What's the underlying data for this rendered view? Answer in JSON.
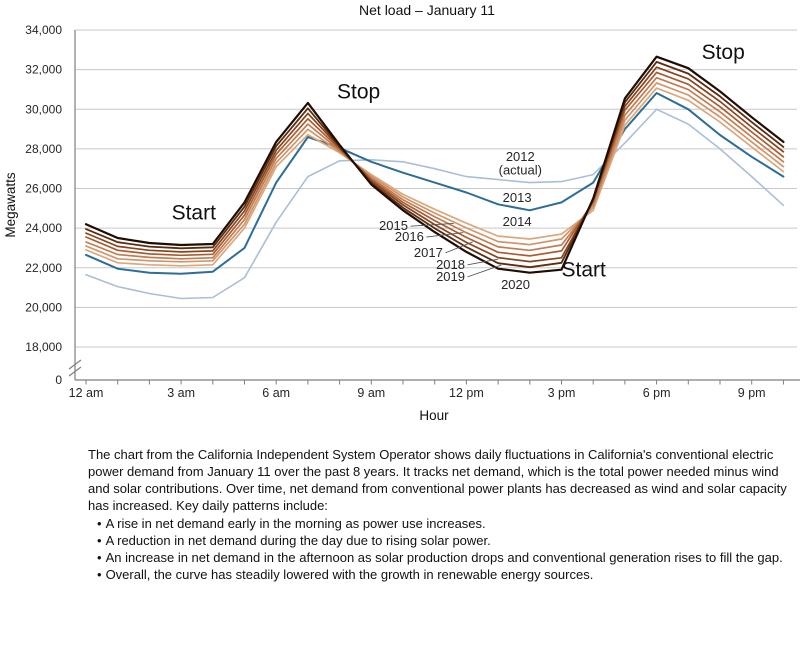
{
  "chart_data": {
    "type": "line",
    "title": "Net load – January 11",
    "x_start_hour": 0,
    "x_step_hours": 1,
    "x_axis": {
      "label": "Hour",
      "labeled_ticks": [
        {
          "hour": 0,
          "label": "12 am"
        },
        {
          "hour": 3,
          "label": "3 am"
        },
        {
          "hour": 6,
          "label": "6 am"
        },
        {
          "hour": 9,
          "label": "9 am"
        },
        {
          "hour": 12,
          "label": "12 pm"
        },
        {
          "hour": 15,
          "label": "3 pm"
        },
        {
          "hour": 18,
          "label": "6 pm"
        },
        {
          "hour": 21,
          "label": "9 pm"
        }
      ]
    },
    "y_axis": {
      "label": "Megawatts",
      "units": "MW",
      "axis_break": true,
      "zero_label": "0",
      "ticks": [
        {
          "value": 34000,
          "label": "34,000"
        },
        {
          "value": 32000,
          "label": "32,000"
        },
        {
          "value": 30000,
          "label": "30,000"
        },
        {
          "value": 28000,
          "label": "28,000"
        },
        {
          "value": 26000,
          "label": "26,000"
        },
        {
          "value": 24000,
          "label": "24,000"
        },
        {
          "value": 22000,
          "label": "22,000"
        },
        {
          "value": 20000,
          "label": "20,000"
        },
        {
          "value": 18000,
          "label": "18,000"
        }
      ]
    },
    "series": [
      {
        "year": "2012",
        "display": "2012 (actual)",
        "color": "#aabfd6",
        "width": 1.6,
        "values": [
          21650,
          21050,
          20700,
          20450,
          20500,
          21500,
          24300,
          26600,
          27400,
          27450,
          27350,
          27000,
          26600,
          26450,
          26300,
          26350,
          26700,
          28300,
          30000,
          29250,
          28000,
          26600,
          25150
        ]
      },
      {
        "year": "2013",
        "display": "2013",
        "color": "#2d6d99",
        "width": 2,
        "values": [
          22650,
          21950,
          21750,
          21700,
          21800,
          23000,
          26300,
          28600,
          28050,
          27350,
          26800,
          26300,
          25800,
          25200,
          24900,
          25300,
          26300,
          29000,
          30820,
          30000,
          28700,
          27600,
          26600
        ]
      },
      {
        "year": "2014",
        "display": "2014",
        "color": "#dba87e",
        "width": 1.7,
        "values": [
          22900,
          22250,
          22150,
          22100,
          22150,
          24000,
          27100,
          28720,
          27800,
          26700,
          25700,
          24950,
          24250,
          23600,
          23450,
          23700,
          24900,
          29200,
          31070,
          30450,
          29350,
          28100,
          26850
        ]
      },
      {
        "year": "2015",
        "display": "2015",
        "color": "#d0956a",
        "width": 1.7,
        "values": [
          23100,
          22450,
          22350,
          22300,
          22350,
          24200,
          27300,
          28990,
          27850,
          26620,
          25570,
          24760,
          24010,
          23320,
          23170,
          23450,
          25050,
          29450,
          31330,
          30720,
          29610,
          28350,
          27100
        ]
      },
      {
        "year": "2016",
        "display": "2016",
        "color": "#c27c51",
        "width": 1.7,
        "values": [
          23300,
          22670,
          22520,
          22450,
          22500,
          24430,
          27520,
          29250,
          27930,
          26530,
          25430,
          24570,
          23770,
          23050,
          22880,
          23150,
          25200,
          29700,
          31590,
          30990,
          29870,
          28600,
          27350
        ]
      },
      {
        "year": "2017",
        "display": "2017",
        "color": "#a95d33",
        "width": 1.7,
        "values": [
          23550,
          22880,
          22700,
          22630,
          22680,
          24650,
          27730,
          29520,
          28000,
          26450,
          25300,
          24380,
          23530,
          22780,
          22600,
          22850,
          25350,
          29950,
          31860,
          31260,
          30130,
          28850,
          27600
        ]
      },
      {
        "year": "2018",
        "display": "2018",
        "color": "#87451d",
        "width": 1.7,
        "values": [
          23750,
          23080,
          22880,
          22800,
          22850,
          24870,
          27930,
          29790,
          28070,
          26370,
          25170,
          24180,
          23280,
          22510,
          22310,
          22500,
          25400,
          30150,
          32120,
          31530,
          30390,
          29100,
          27850
        ]
      },
      {
        "year": "2019",
        "display": "2019",
        "color": "#5c2c0f",
        "width": 1.8,
        "values": [
          23950,
          23290,
          23070,
          22980,
          23030,
          25080,
          28140,
          30050,
          28130,
          26280,
          25030,
          23990,
          23040,
          22230,
          22030,
          22250,
          25450,
          30350,
          32390,
          31800,
          30650,
          29350,
          28100
        ]
      },
      {
        "year": "2020",
        "display": "2020",
        "color": "#1d0e05",
        "width": 2.2,
        "values": [
          24200,
          23500,
          23250,
          23150,
          23200,
          25300,
          28350,
          30320,
          28200,
          26200,
          24900,
          23800,
          22800,
          21950,
          21750,
          21900,
          25500,
          30550,
          32650,
          32070,
          30900,
          29600,
          28350
        ]
      }
    ],
    "series_labels": [
      {
        "year": "2012",
        "lines": [
          "2012",
          "(actual)"
        ],
        "hour": 13.7,
        "mw": 27600
      },
      {
        "year": "2013",
        "lines": [
          "2013"
        ],
        "hour": 13.6,
        "mw": 25520
      },
      {
        "year": "2014",
        "lines": [
          "2014"
        ],
        "hour": 13.6,
        "mw": 24310
      },
      {
        "year": "2015",
        "lines": [
          "2015"
        ],
        "hour": 9.7,
        "mw": 24100,
        "leader_to_hour": 11.6
      },
      {
        "year": "2016",
        "lines": [
          "2016"
        ],
        "hour": 10.2,
        "mw": 23550,
        "leader_to_hour": 11.9
      },
      {
        "year": "2017",
        "lines": [
          "2017"
        ],
        "hour": 10.8,
        "mw": 22750,
        "leader_to_hour": 12.2
      },
      {
        "year": "2018",
        "lines": [
          "2018"
        ],
        "hour": 11.5,
        "mw": 22150,
        "leader_to_hour": 13.0
      },
      {
        "year": "2019",
        "lines": [
          "2019"
        ],
        "hour": 11.5,
        "mw": 21540,
        "leader_to_hour": 13.1
      },
      {
        "year": "2020",
        "lines": [
          "2020"
        ],
        "hour": 13.55,
        "mw": 21140
      }
    ],
    "annotations": [
      {
        "text": "Start",
        "hour": 3.4,
        "mw": 24800
      },
      {
        "text": "Stop",
        "hour": 8.6,
        "mw": 30900
      },
      {
        "text": "Start",
        "hour": 15.7,
        "mw": 21900
      },
      {
        "text": "Stop",
        "hour": 20.1,
        "mw": 32900
      }
    ]
  },
  "description": {
    "intro": "The chart from the California Independent System Operator shows daily fluctuations in California's conventional electric power demand from January 11 over the past 8 years. It tracks net demand, which is the total power needed minus wind and solar contributions. Over time, net demand from conventional power plants has decreased as wind and solar capacity has increased. Key daily patterns include:",
    "bullet_glyph": "•",
    "bullets": [
      "A rise in net demand early in the morning as power use increases.",
      "A reduction in net demand during the day due to rising solar power.",
      "An increase in net demand in the afternoon as solar production drops and conventional generation rises to fill the gap.",
      "Overall, the curve has steadily lowered with the growth in renewable energy sources."
    ]
  },
  "colors": {
    "gridline": "#c8c8c8",
    "axis": "#7f7f7f",
    "axis_text": "#262626",
    "annotation_text": "#111111",
    "leader_line": "#555555"
  }
}
